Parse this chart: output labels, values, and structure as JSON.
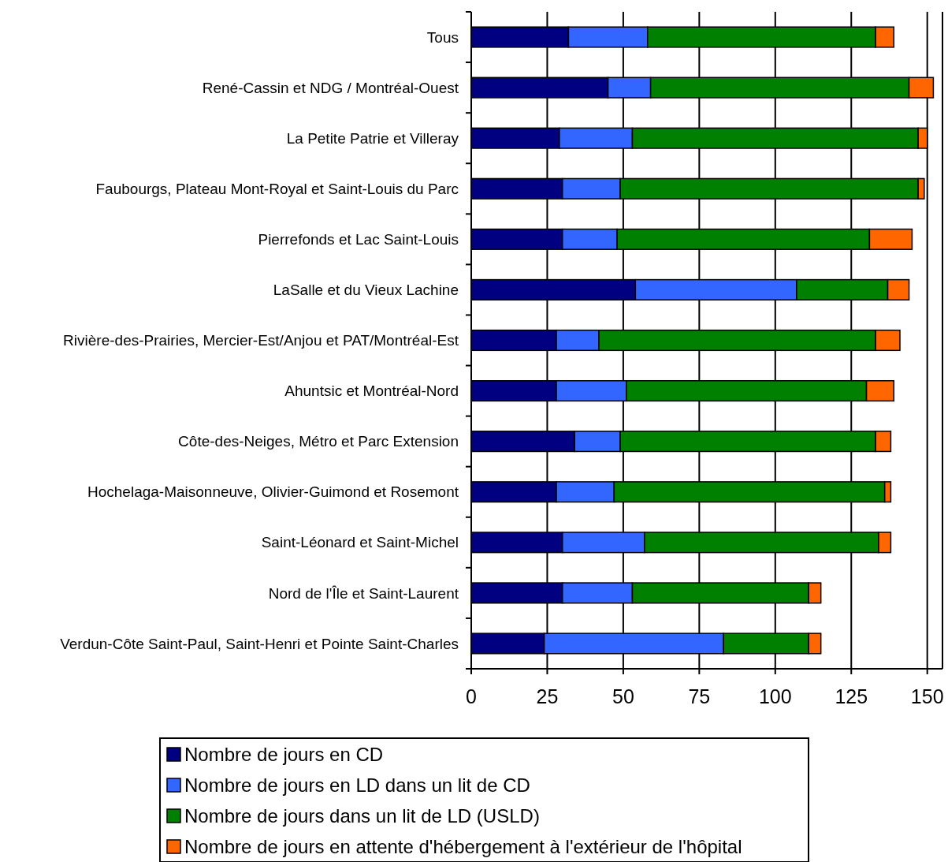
{
  "chart_data": {
    "type": "bar",
    "orientation": "horizontal",
    "stacked": true,
    "categories": [
      "Tous",
      "René-Cassin et NDG / Montréal-Ouest",
      "La Petite Patrie et Villeray",
      "Faubourgs, Plateau Mont-Royal et Saint-Louis du Parc",
      "Pierrefonds et Lac Saint-Louis",
      "LaSalle et du Vieux Lachine",
      "Rivière-des-Prairies, Mercier-Est/Anjou et PAT/Montréal-Est",
      "Ahuntsic et Montréal-Nord",
      "Côte-des-Neiges, Métro et Parc Extension",
      "Hochelaga-Maisonneuve, Olivier-Guimond et Rosemont",
      "Saint-Léonard et Saint-Michel",
      "Nord de l'Île et Saint-Laurent",
      "Verdun-Côte Saint-Paul, Saint-Henri et Pointe Saint-Charles"
    ],
    "series": [
      {
        "name": "Nombre de jours en CD",
        "color": "#000080",
        "values": [
          32,
          45,
          29,
          30,
          30,
          54,
          28,
          28,
          34,
          28,
          30,
          30,
          24
        ]
      },
      {
        "name": "Nombre de jours en LD dans un lit de CD",
        "color": "#3366ff",
        "values": [
          26,
          14,
          24,
          19,
          18,
          53,
          14,
          23,
          15,
          19,
          27,
          23,
          59
        ]
      },
      {
        "name": "Nombre de jours dans un lit de LD (USLD)",
        "color": "#008000",
        "values": [
          75,
          85,
          94,
          98,
          83,
          30,
          91,
          79,
          84,
          89,
          77,
          58,
          28
        ]
      },
      {
        "name": "Nombre de jours en attente d'hébergement à l'extérieur de l'hôpital",
        "color": "#ff6600",
        "values": [
          6,
          8,
          3,
          2,
          14,
          7,
          8,
          9,
          5,
          2,
          4,
          4,
          4
        ]
      }
    ],
    "xlim": [
      0,
      155
    ],
    "xticks": [
      0,
      25,
      50,
      75,
      100,
      125,
      150
    ],
    "grid": "x",
    "legend": "bottom"
  }
}
